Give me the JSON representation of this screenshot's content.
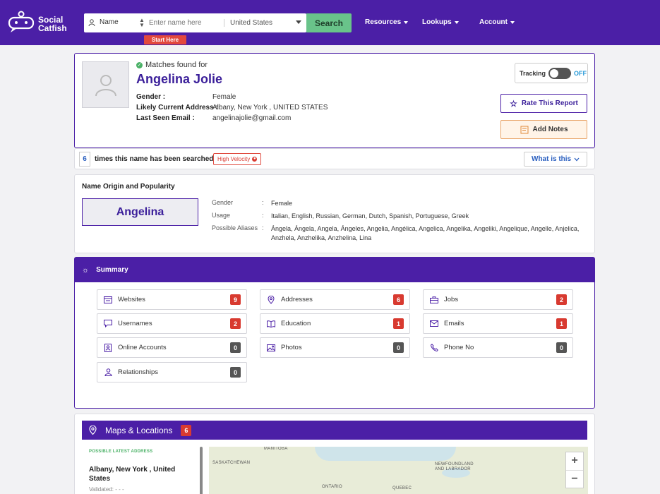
{
  "brand": {
    "line1": "Social",
    "line2": "Catfish"
  },
  "search": {
    "type_label": "Name",
    "placeholder": "Enter name here",
    "country": "United States",
    "button": "Search",
    "start_here": "Start Here"
  },
  "nav": {
    "resources": "Resources",
    "lookups": "Lookups",
    "account": "Account"
  },
  "profile": {
    "matches_label": "Matches found for",
    "name": "Angelina Jolie",
    "gender_label": "Gender :",
    "gender_value": "Female",
    "address_label": "Likely Current Address :",
    "address_value": "Albany, New York , UNITED STATES",
    "email_label": "Last Seen Email :",
    "email_value": "angelinajolie@gmail.com",
    "tracking_label": "Tracking",
    "tracking_state": "OFF",
    "rate_label": "Rate This Report",
    "notes_label": "Add Notes"
  },
  "searches": {
    "count": "6",
    "text": "times this name has been searched",
    "velocity": "High Velocity",
    "what_label": "What is this"
  },
  "origin": {
    "title": "Name Origin and Popularity",
    "first_name": "Angelina",
    "gender_label": "Gender",
    "gender_value": "Female",
    "usage_label": "Usage",
    "usage_value": "Italian, English, Russian, German, Dutch, Spanish, Portuguese, Greek",
    "aliases_label": "Possible Aliases",
    "aliases_value": "Ángela, Ángela, Angela, Ángeles, Angelia, Angélica, Angelica, Angelika, Angeliki, Angelique, Angelle, Anjelica, Anzhela, Anzhelika, Anzhelina, Lina",
    "colon": ":"
  },
  "summary": {
    "title": "Summary",
    "tiles": [
      {
        "label": "Websites",
        "count": "9",
        "icon": "browser-icon"
      },
      {
        "label": "Addresses",
        "count": "6",
        "icon": "pin-icon"
      },
      {
        "label": "Jobs",
        "count": "2",
        "icon": "briefcase-icon"
      },
      {
        "label": "Usernames",
        "count": "2",
        "icon": "chat-icon"
      },
      {
        "label": "Education",
        "count": "1",
        "icon": "book-icon"
      },
      {
        "label": "Emails",
        "count": "1",
        "icon": "mail-icon"
      },
      {
        "label": "Online Accounts",
        "count": "0",
        "icon": "account-icon"
      },
      {
        "label": "Photos",
        "count": "0",
        "icon": "photo-icon"
      },
      {
        "label": "Phone No",
        "count": "0",
        "icon": "phone-icon"
      },
      {
        "label": "Relationships",
        "count": "0",
        "icon": "person-icon"
      }
    ]
  },
  "maps": {
    "title": "Maps & Locations",
    "count": "6",
    "address_label": "POSSIBLE LATEST ADDRESS",
    "address_value": "Albany, New York , United States",
    "validated": "Validated: - - -",
    "labels": [
      "MANITOBA",
      "SASKATCHEWAN",
      "NEWFOUNDLAND AND LABRADOR",
      "ONTARIO",
      "QUEBEC"
    ],
    "zoom_in": "+",
    "zoom_out": "−"
  },
  "colors": {
    "brand_purple": "#4b1fa6",
    "search_green": "#69c38a",
    "badge_red": "#d83a30",
    "badge_gray": "#555555"
  }
}
